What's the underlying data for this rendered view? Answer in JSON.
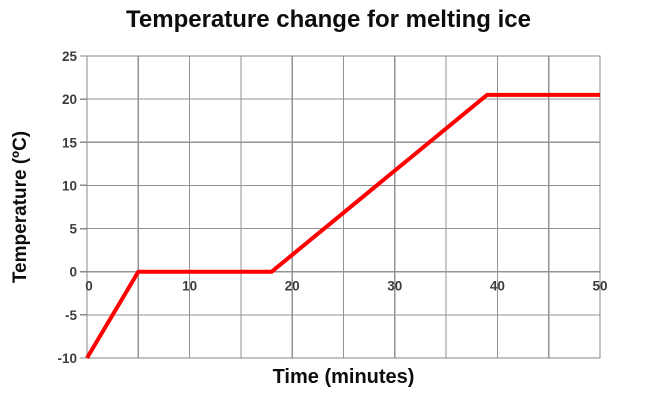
{
  "chart_data": {
    "type": "line",
    "title": "Temperature change for melting ice",
    "xlabel": "Time (minutes)",
    "ylabel": "Temperature (ºC)",
    "series": [
      {
        "name": "Temperature",
        "points": [
          [
            0,
            -10
          ],
          [
            5,
            0
          ],
          [
            18,
            0
          ],
          [
            39,
            20.5
          ],
          [
            50,
            20.5
          ]
        ]
      }
    ],
    "xlim": [
      0,
      50
    ],
    "ylim": [
      -10,
      25
    ],
    "x_tick_labels": [
      0,
      10,
      20,
      30,
      40,
      50
    ],
    "y_tick_labels": [
      25,
      20,
      15,
      10,
      5,
      0,
      -5,
      -10
    ],
    "x_grid_step": 5,
    "y_grid_step": 5,
    "grid": true,
    "legend": "none",
    "x_labels_position": "below zero axis line",
    "colors": {
      "line": "#fe0000",
      "grid": "#939393",
      "frame": "#8a8a8a",
      "tick_label": "#3d3d3d",
      "title": "#0d0d0d",
      "background": "#ffffff"
    }
  }
}
